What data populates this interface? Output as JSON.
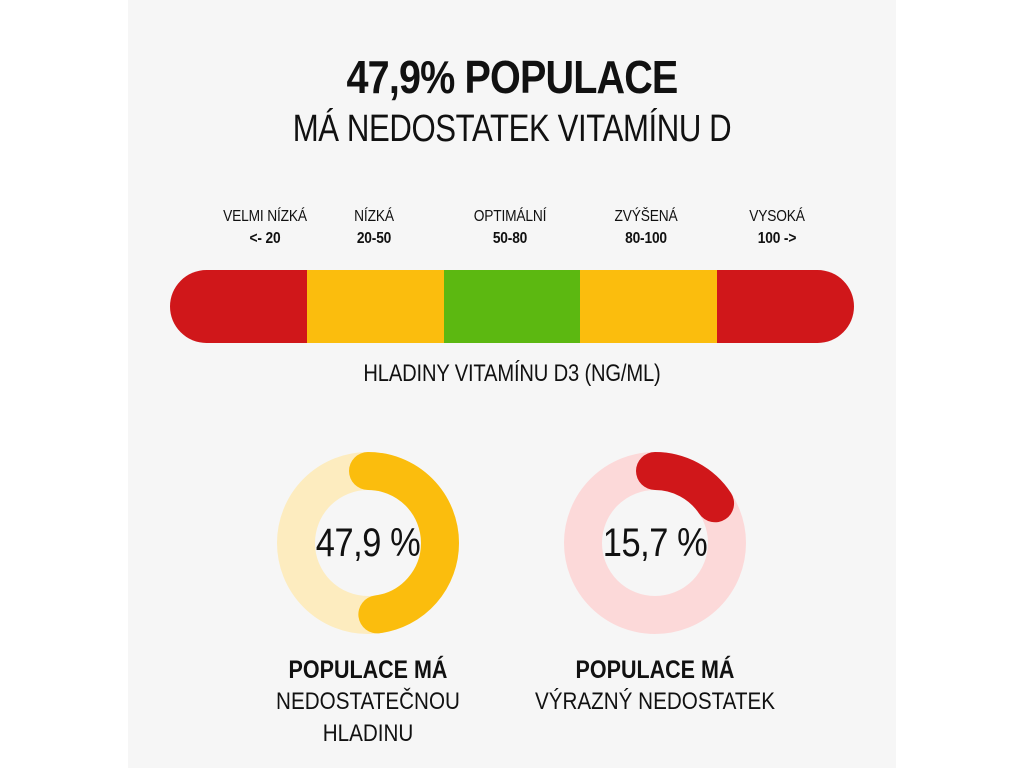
{
  "header": {
    "headline": "47,9% POPULACE",
    "subheadline": "MÁ NEDOSTATEK VITAMÍNU D"
  },
  "chart_data": [
    {
      "type": "bar",
      "title": "",
      "xlabel": "HLADINY VITAMÍNU D3 (NG/ML)",
      "categories": [
        {
          "name": "VELMI NÍZKÁ",
          "range": "<- 20",
          "color": "#d0171a"
        },
        {
          "name": "NÍZKÁ",
          "range": "20-50",
          "color": "#fbbd0d"
        },
        {
          "name": "OPTIMÁLNÍ",
          "range": "50-80",
          "color": "#5cb811"
        },
        {
          "name": "ZVÝŠENÁ",
          "range": "80-100",
          "color": "#fbbd0d"
        },
        {
          "name": "VYSOKÁ",
          "range": "100 ->",
          "color": "#d0171a"
        }
      ]
    },
    {
      "type": "pie",
      "value": 47.9,
      "value_label": "47,9 %",
      "caption_bold": "POPULACE MÁ",
      "caption": "NEDOSTATEČNOU HLADINU",
      "color": "#fbbd0d",
      "track_color": "#fdecbf"
    },
    {
      "type": "pie",
      "value": 15.7,
      "value_label": "15,7 %",
      "caption_bold": "POPULACE MÁ",
      "caption": "VÝRAZNÝ NEDOSTATEK",
      "color": "#d0171a",
      "track_color": "#fcd9d9"
    }
  ]
}
